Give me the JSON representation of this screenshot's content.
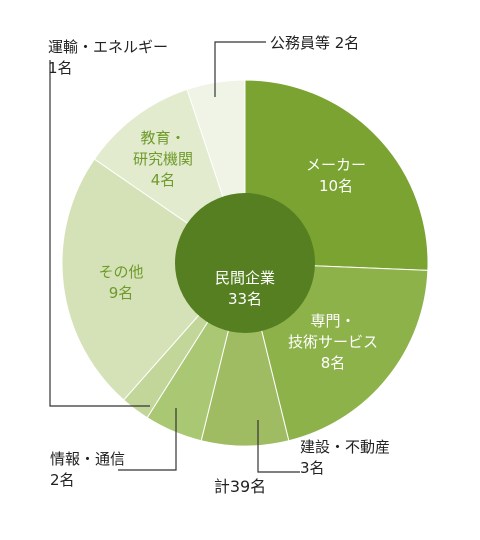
{
  "chart_data": {
    "type": "pie",
    "center": {
      "label": "民間企業",
      "value": "33名"
    },
    "total_label": "計39名",
    "slices": [
      {
        "name": "メーカー",
        "value": 10,
        "count_label": "10名",
        "group": "private",
        "color": "#7aa331"
      },
      {
        "name": "専門・技術サービス",
        "value": 8,
        "count_label": "8名",
        "group": "private",
        "color": "#8db24a"
      },
      {
        "name": "建設・不動産",
        "value": 3,
        "count_label": "3名",
        "group": "private",
        "color": "#9fbc62"
      },
      {
        "name": "情報・通信",
        "value": 2,
        "count_label": "2名",
        "group": "private",
        "color": "#aac774"
      },
      {
        "name": "運輸・エネルギー",
        "value": 1,
        "count_label": "1名",
        "group": "private",
        "color": "#c2d69a"
      },
      {
        "name": "その他",
        "value": 9,
        "count_label": "9名",
        "group": "private",
        "color": "#d5e2b7"
      },
      {
        "name": "教育・研究機関",
        "value": 4,
        "count_label": "4名",
        "group": "other",
        "color": "#e3ebcf"
      },
      {
        "name": "公務員等",
        "value": 2,
        "count_label": "2名",
        "group": "other",
        "color": "#f0f4e6"
      }
    ],
    "center_color": "#557f21"
  },
  "labels": {
    "maker": [
      "メーカー",
      "10名"
    ],
    "senmon": [
      "専門・",
      "技術サービス",
      "8名"
    ],
    "kensetsu": [
      "建設・不動産",
      "3名"
    ],
    "joho": [
      "情報・通信",
      "2名"
    ],
    "unyu": [
      "運輸・エネルギー",
      "1名"
    ],
    "sonota": [
      "その他",
      "9名"
    ],
    "kyoiku": [
      "教育・",
      "研究機関",
      "4名"
    ],
    "koumuin": "公務員等 2名"
  }
}
